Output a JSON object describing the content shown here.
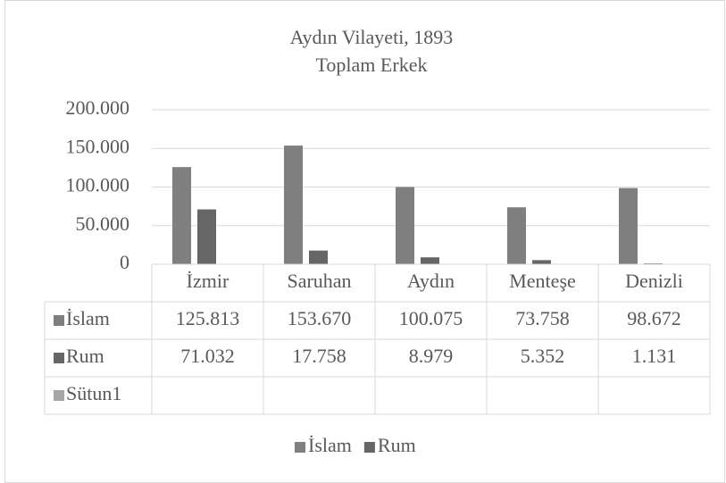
{
  "chart_data": {
    "type": "bar",
    "title": "Aydın Vilayeti, 1893",
    "subtitle": "Toplam Erkek",
    "categories": [
      "İzmir",
      "Saruhan",
      "Aydın",
      "Menteşe",
      "Denizli"
    ],
    "series": [
      {
        "name": "İslam",
        "color": "#7f7f7f",
        "values": [
          125813,
          153670,
          100075,
          73758,
          98672
        ],
        "value_labels": [
          "125.813",
          "153.670",
          "100.075",
          "73.758",
          "98.672"
        ]
      },
      {
        "name": "Rum",
        "color": "#666666",
        "values": [
          71032,
          17758,
          8979,
          5352,
          1131
        ],
        "value_labels": [
          "71.032",
          "17.758",
          "8.979",
          "5.352",
          "1.131"
        ]
      },
      {
        "name": "Sütun1",
        "color": "#a6a6a6",
        "values": [
          null,
          null,
          null,
          null,
          null
        ]
      }
    ],
    "ylim": [
      0,
      200000
    ],
    "yticks": [
      0,
      {
        "value": 50000,
        "label": "50.000"
      },
      {
        "value": 100000,
        "label": "100.000"
      },
      {
        "value": 150000,
        "label": "150.000"
      },
      {
        "value": 200000,
        "label": "200.000"
      }
    ],
    "grid": true
  }
}
